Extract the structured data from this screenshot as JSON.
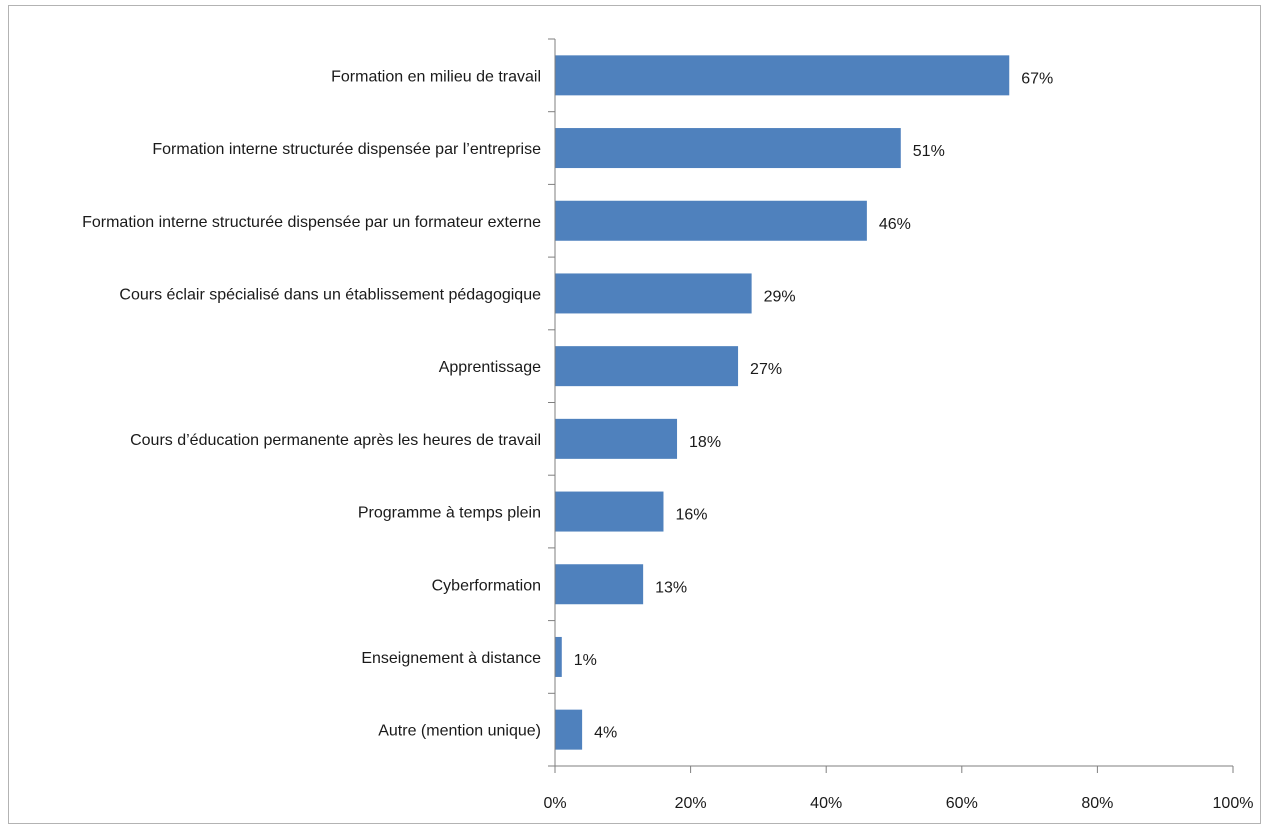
{
  "chart_data": {
    "type": "bar",
    "orientation": "horizontal",
    "categories": [
      "Formation en milieu de travail",
      "Formation interne structurée dispensée par l’entreprise",
      "Formation interne structurée dispensée par un formateur externe",
      "Cours éclair spécialisé dans un établissement pédagogique",
      "Apprentissage",
      "Cours d’éducation permanente après les heures de travail",
      "Programme à temps plein",
      "Cyberformation",
      "Enseignement à distance",
      "Autre (mention unique)"
    ],
    "values": [
      67,
      51,
      46,
      29,
      27,
      18,
      16,
      13,
      1,
      4
    ],
    "data_labels": [
      "67%",
      "51%",
      "46%",
      "29%",
      "27%",
      "18%",
      "16%",
      "13%",
      "1%",
      "4%"
    ],
    "x_ticks": [
      "0%",
      "20%",
      "40%",
      "60%",
      "80%",
      "100%"
    ],
    "xlim": [
      0,
      100
    ],
    "bar_color": "#4f81bd",
    "grid": false,
    "legend": "none"
  }
}
